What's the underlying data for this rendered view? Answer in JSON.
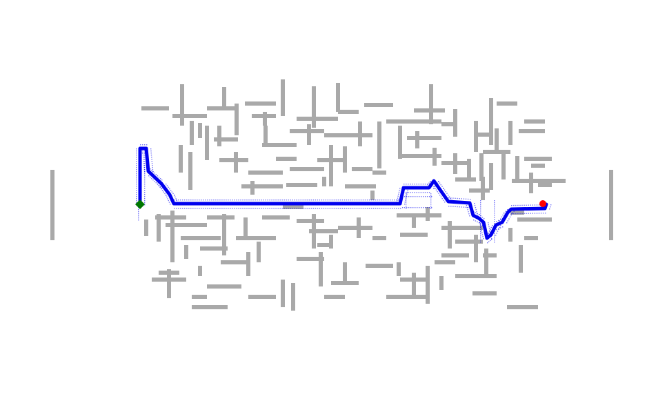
{
  "colors": {
    "background": "#ffffff",
    "wall": "#a9a9a9",
    "path": "#0000ee",
    "explored": "#0000ee",
    "start_marker": "#007700",
    "goal_marker": "#ff0000"
  },
  "markers": {
    "start_shape": "diamond",
    "goal_shape": "circle"
  }
}
